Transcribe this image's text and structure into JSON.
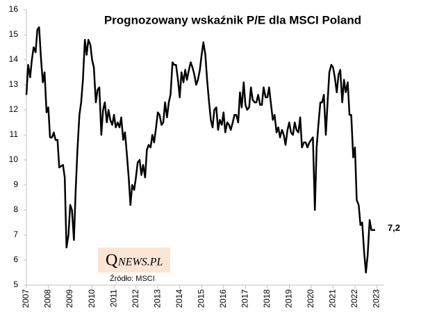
{
  "chart_data": {
    "type": "line",
    "title": "Prognozowany  wskaźnik  P/E dla MSCI Poland",
    "x": [
      2007,
      2007.08,
      2007.17,
      2007.25,
      2007.33,
      2007.42,
      2007.5,
      2007.58,
      2007.67,
      2007.75,
      2007.83,
      2007.92,
      2008,
      2008.08,
      2008.17,
      2008.25,
      2008.33,
      2008.42,
      2008.5,
      2008.58,
      2008.67,
      2008.75,
      2008.83,
      2008.92,
      2009,
      2009.08,
      2009.17,
      2009.25,
      2009.33,
      2009.42,
      2009.5,
      2009.58,
      2009.67,
      2009.75,
      2009.83,
      2009.92,
      2010,
      2010.08,
      2010.17,
      2010.25,
      2010.33,
      2010.42,
      2010.5,
      2010.58,
      2010.67,
      2010.75,
      2010.83,
      2010.92,
      2011,
      2011.08,
      2011.17,
      2011.25,
      2011.33,
      2011.42,
      2011.5,
      2011.58,
      2011.67,
      2011.75,
      2011.83,
      2011.92,
      2012,
      2012.08,
      2012.17,
      2012.25,
      2012.33,
      2012.42,
      2012.5,
      2012.58,
      2012.67,
      2012.75,
      2012.83,
      2012.92,
      2013,
      2013.08,
      2013.17,
      2013.25,
      2013.33,
      2013.42,
      2013.5,
      2013.58,
      2013.67,
      2013.75,
      2013.83,
      2013.92,
      2014,
      2014.08,
      2014.17,
      2014.25,
      2014.33,
      2014.42,
      2014.5,
      2014.58,
      2014.67,
      2014.75,
      2014.83,
      2014.92,
      2015,
      2015.08,
      2015.17,
      2015.25,
      2015.33,
      2015.42,
      2015.5,
      2015.58,
      2015.67,
      2015.75,
      2015.83,
      2015.92,
      2016,
      2016.08,
      2016.17,
      2016.25,
      2016.33,
      2016.42,
      2016.5,
      2016.58,
      2016.67,
      2016.75,
      2016.83,
      2016.92,
      2017,
      2017.08,
      2017.17,
      2017.25,
      2017.33,
      2017.42,
      2017.5,
      2017.58,
      2017.67,
      2017.75,
      2017.83,
      2017.92,
      2018,
      2018.08,
      2018.17,
      2018.25,
      2018.33,
      2018.42,
      2018.5,
      2018.58,
      2018.67,
      2018.75,
      2018.83,
      2018.92,
      2019,
      2019.08,
      2019.17,
      2019.25,
      2019.33,
      2019.42,
      2019.5,
      2019.58,
      2019.67,
      2019.75,
      2019.83,
      2019.92,
      2020,
      2020.08,
      2020.17,
      2020.25,
      2020.33,
      2020.42,
      2020.5,
      2020.58,
      2020.67,
      2020.75,
      2020.83,
      2020.92,
      2021,
      2021.08,
      2021.17,
      2021.25,
      2021.33,
      2021.42,
      2021.5,
      2021.58,
      2021.67,
      2021.75,
      2021.83,
      2021.92,
      2022,
      2022.08,
      2022.17,
      2022.25,
      2022.33,
      2022.42,
      2022.5,
      2022.58,
      2022.67,
      2022.75,
      2022.83,
      2022.92
    ],
    "series": [
      {
        "name": "P/E",
        "color": "#000000",
        "values": [
          12.6,
          13.8,
          13.3,
          14.0,
          14.5,
          14.3,
          15.2,
          15.3,
          14.0,
          13.1,
          13.5,
          11.9,
          12.1,
          10.9,
          10.9,
          11.1,
          10.8,
          10.8,
          9.7,
          9.75,
          9.8,
          9.3,
          6.5,
          7.0,
          8.2,
          8.0,
          6.8,
          8.8,
          10.4,
          11.8,
          12.3,
          13.2,
          14.8,
          14.2,
          14.8,
          14.6,
          14.0,
          13.7,
          12.3,
          12.8,
          12.9,
          11.0,
          12.0,
          12.3,
          11.5,
          12.0,
          11.6,
          11.4,
          11.8,
          11.3,
          11.5,
          11.3,
          11.7,
          10.8,
          11.1,
          10.3,
          9.3,
          8.2,
          9.0,
          8.8,
          9.3,
          9.9,
          10.0,
          9.4,
          9.8,
          9.3,
          10.4,
          10.6,
          10.5,
          11.0,
          10.7,
          11.3,
          11.9,
          11.8,
          11.4,
          11.5,
          12.3,
          11.7,
          12.3,
          12.6,
          13.9,
          13.8,
          13.8,
          13.2,
          12.5,
          13.5,
          13.1,
          13.6,
          13.2,
          13.6,
          13.9,
          13.7,
          13.4,
          13.0,
          13.2,
          13.6,
          14.2,
          14.7,
          14.2,
          13.2,
          12.4,
          11.6,
          11.3,
          12.0,
          12.1,
          11.2,
          11.6,
          11.4,
          11.9,
          11.1,
          11.5,
          11.4,
          11.2,
          11.5,
          11.8,
          11.8,
          11.5,
          12.7,
          12.1,
          13.1,
          12.2,
          12.0,
          12.1,
          12.9,
          12.4,
          12.3,
          12.3,
          12.6,
          12.2,
          12.2,
          12.9,
          12.5,
          12.5,
          12.9,
          12.2,
          11.6,
          11.8,
          11.1,
          11.3,
          10.9,
          11.2,
          11.0,
          10.6,
          11.2,
          11.5,
          11.1,
          11.0,
          11.5,
          11.2,
          11.1,
          11.7,
          10.5,
          10.7,
          10.7,
          10.5,
          10.7,
          10.8,
          10.9,
          8.0,
          10.5,
          11.4,
          12.3,
          12.3,
          12.6,
          11.0,
          12.3,
          13.5,
          13.8,
          13.7,
          13.3,
          12.7,
          13.4,
          13.6,
          12.3,
          13.2,
          12.7,
          13.1,
          11.8,
          11.8,
          10.1,
          10.5,
          8.4,
          8.2,
          7.4,
          7.5,
          6.3,
          5.5,
          6.2,
          7.6,
          7.2,
          7.2,
          7.2
        ]
      }
    ],
    "annotations": [
      {
        "x": 2022.92,
        "y": 7.2,
        "label": "7,2"
      }
    ],
    "xlim": [
      2007,
      2024
    ],
    "xticks": [
      2007,
      2008,
      2009,
      2010,
      2011,
      2012,
      2013,
      2014,
      2015,
      2016,
      2017,
      2018,
      2019,
      2020,
      2021,
      2022,
      2023
    ],
    "ylim": [
      5,
      16
    ],
    "yticks": [
      5,
      6,
      7,
      8,
      9,
      10,
      11,
      12,
      13,
      14,
      15,
      16
    ],
    "grid": false,
    "logo_initial": "Q",
    "logo_rest": "NEWS.PL",
    "source": "Źródło: MSCI"
  }
}
